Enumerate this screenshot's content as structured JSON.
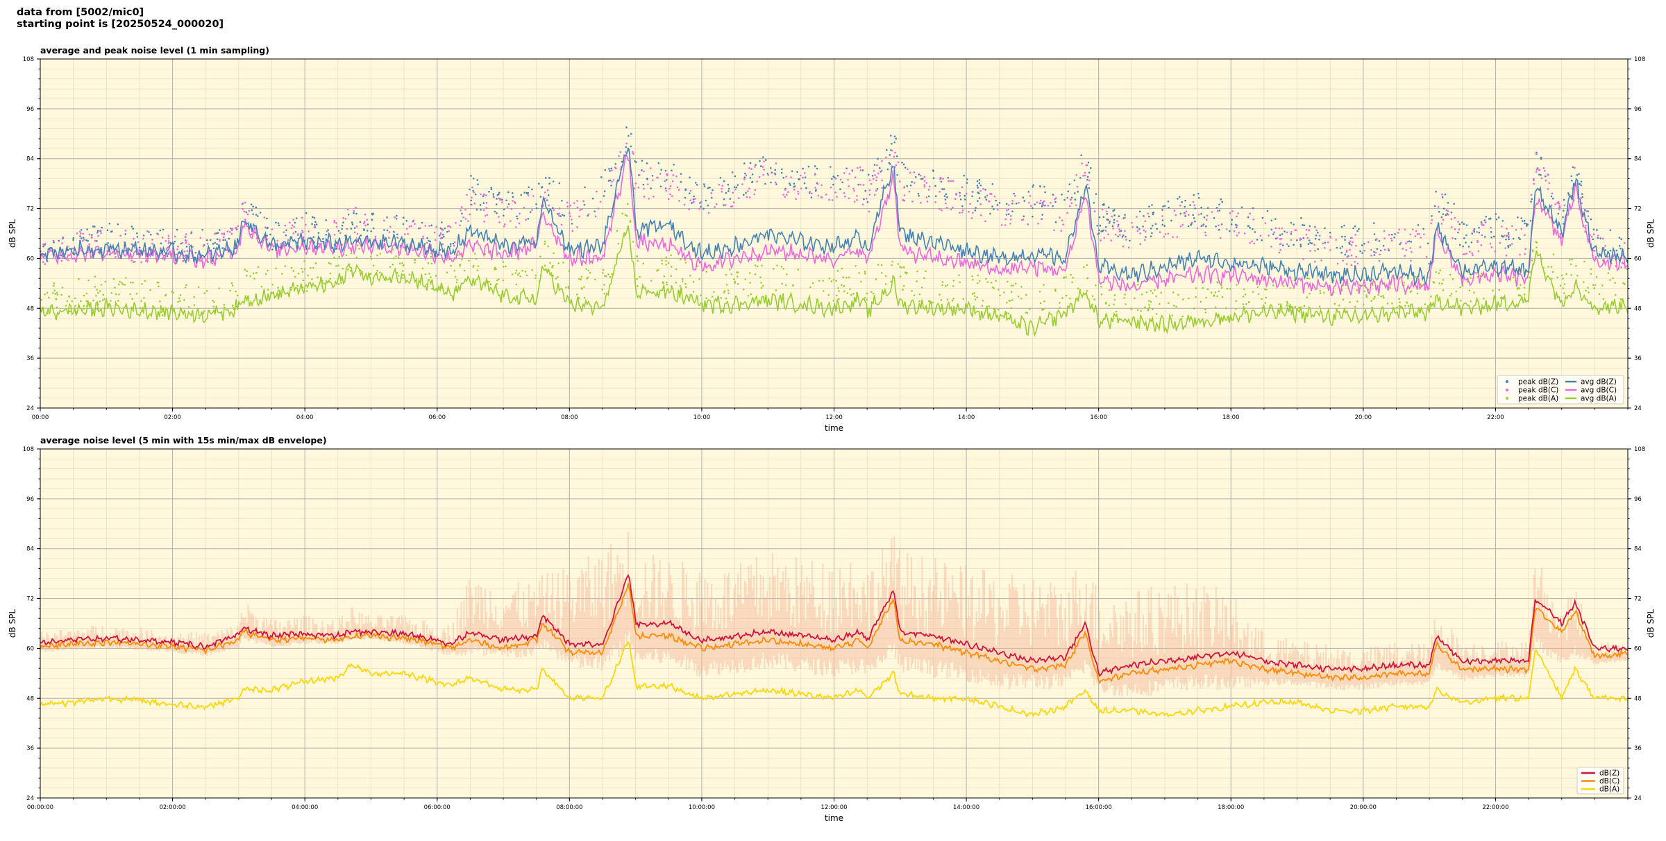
{
  "header": {
    "line1": "data from [5002/mic0]",
    "line2": "starting point is [20250524_000020]"
  },
  "colors": {
    "background": "#fff8dc",
    "grid_major": "#b0b0b0",
    "grid_minor": "#e4dcc0",
    "dbz": "#4682b4",
    "dbc": "#ee66dd",
    "dba": "#9acd32",
    "p2_z": "#d2143c",
    "p2_c": "#ff8c00",
    "p2_a": "#ffd700",
    "envelope": "#f4b69a"
  },
  "chart_data": [
    {
      "type": "line",
      "title": "average and peak noise level (1 min sampling)",
      "xlabel": "time",
      "ylabel": "dB SPL",
      "xlim_hours": [
        0,
        24
      ],
      "ylim": [
        24,
        108
      ],
      "yticks": [
        24,
        36,
        48,
        60,
        72,
        84,
        96,
        108
      ],
      "xtick_hours": [
        0,
        2,
        4,
        6,
        8,
        10,
        12,
        14,
        16,
        18,
        20,
        22
      ],
      "xtick_labels": [
        "00:00",
        "02:00",
        "04:00",
        "06:00",
        "08:00",
        "10:00",
        "12:00",
        "14:00",
        "16:00",
        "18:00",
        "20:00",
        "22:00"
      ],
      "grid": true,
      "legend_position": "bottom-right",
      "x_hours": [
        0.0,
        0.5,
        1.0,
        1.5,
        2.0,
        2.5,
        3.0,
        3.05,
        3.5,
        4.0,
        4.5,
        4.7,
        5.0,
        5.5,
        6.0,
        6.2,
        6.5,
        7.0,
        7.5,
        7.6,
        8.0,
        8.5,
        8.9,
        9.0,
        9.5,
        10.0,
        10.5,
        11.0,
        11.5,
        12.0,
        12.4,
        12.5,
        12.9,
        13.0,
        13.5,
        14.0,
        14.5,
        15.0,
        15.5,
        15.8,
        16.0,
        16.5,
        17.0,
        17.5,
        18.0,
        18.5,
        19.0,
        19.5,
        20.0,
        20.5,
        21.0,
        21.1,
        21.5,
        22.0,
        22.5,
        22.6,
        23.0,
        23.2,
        23.5,
        24.0
      ],
      "legend": [
        "peak dB(Z)",
        "peak dB(C)",
        "peak dB(A)",
        "avg dB(Z)",
        "avg dB(C)",
        "avg dB(A)"
      ],
      "series": [
        {
          "name": "avg dB(Z)",
          "values": [
            61.5,
            62,
            62.5,
            62,
            61.5,
            60.5,
            63,
            70,
            63,
            64,
            63.5,
            64,
            64,
            63.5,
            62,
            61,
            67,
            63,
            64,
            74,
            62,
            63,
            88,
            67,
            68,
            61,
            63,
            66,
            64,
            63,
            65,
            62,
            83,
            66,
            64,
            62,
            60,
            61,
            60,
            78,
            58,
            56,
            58,
            60,
            59,
            58,
            57,
            56,
            56,
            57,
            55,
            68,
            57,
            58,
            57,
            77,
            66,
            79,
            61,
            60.5
          ]
        },
        {
          "name": "avg dB(C)",
          "values": [
            60.5,
            61,
            61.5,
            61,
            60.5,
            59.5,
            62,
            69,
            62,
            63,
            62.5,
            63,
            63,
            62.5,
            61,
            60,
            63,
            61,
            63,
            71,
            60,
            60,
            86,
            64,
            63,
            58,
            60,
            62,
            61,
            60,
            62,
            59,
            80,
            62,
            60,
            59,
            57,
            58,
            57,
            76,
            55,
            53,
            55,
            56,
            56,
            55,
            54,
            53,
            53,
            54,
            53,
            66,
            55,
            56,
            55,
            75,
            64,
            77,
            59,
            59
          ]
        },
        {
          "name": "avg dB(A)",
          "values": [
            47,
            47.5,
            48,
            47.5,
            47,
            46.5,
            48,
            50,
            51,
            53,
            54,
            58,
            55,
            56,
            53,
            51,
            55,
            51,
            50,
            58,
            49,
            48,
            68,
            52,
            52,
            49,
            49,
            50,
            49,
            48,
            50,
            47,
            54,
            49,
            48,
            48,
            46,
            43,
            47,
            52,
            45,
            45,
            44,
            45,
            46,
            47,
            47,
            46,
            46,
            47,
            47,
            50,
            48,
            49,
            50,
            62,
            49,
            54,
            48,
            49
          ]
        },
        {
          "name": "peak dB(Z)",
          "values": [
            63,
            64,
            64.5,
            64,
            63.5,
            63,
            65,
            72,
            66,
            67,
            66,
            70,
            67,
            67,
            65,
            65,
            76,
            72,
            74,
            78,
            72,
            76,
            90,
            80,
            80,
            74,
            78,
            82,
            79,
            78,
            80,
            76,
            88,
            80,
            78,
            76,
            74,
            74,
            72,
            84,
            70,
            68,
            70,
            72,
            70,
            68,
            66,
            64,
            64,
            66,
            64,
            76,
            66,
            67,
            66,
            86,
            70,
            80,
            64,
            62
          ]
        },
        {
          "name": "peak dB(C)",
          "values": [
            62,
            63,
            63.5,
            63,
            62.5,
            62,
            64,
            71,
            65,
            66,
            65,
            69,
            66,
            66,
            64,
            64,
            74,
            70,
            72,
            76,
            70,
            74,
            88,
            78,
            78,
            72,
            76,
            80,
            77,
            76,
            78,
            74,
            86,
            78,
            76,
            74,
            72,
            72,
            70,
            82,
            68,
            66,
            68,
            70,
            68,
            66,
            64,
            62,
            62,
            64,
            62,
            74,
            64,
            65,
            64,
            84,
            68,
            78,
            63,
            61
          ]
        },
        {
          "name": "peak dB(A)",
          "values": [
            50,
            51,
            52,
            51,
            50,
            49.5,
            51,
            54,
            54,
            56,
            57,
            61,
            58,
            59,
            56,
            55,
            60,
            56,
            55,
            62,
            54,
            53,
            72,
            57,
            57,
            54,
            54,
            55,
            54,
            53,
            55,
            52,
            58,
            54,
            53,
            53,
            51,
            49,
            52,
            56,
            50,
            50,
            49,
            50,
            51,
            52,
            52,
            51,
            51,
            52,
            52,
            54,
            53,
            54,
            55,
            64,
            54,
            58,
            53,
            54
          ]
        }
      ]
    },
    {
      "type": "line",
      "title": "average noise level (5 min with 15s min/max dB envelope)",
      "xlabel": "time",
      "ylabel": "dB SPL",
      "xlim_hours": [
        0,
        24
      ],
      "ylim": [
        24,
        108
      ],
      "yticks": [
        24,
        36,
        48,
        60,
        72,
        84,
        96,
        108
      ],
      "xtick_hours": [
        0,
        2,
        4,
        6,
        8,
        10,
        12,
        14,
        16,
        18,
        20,
        22
      ],
      "xtick_labels": [
        "00:00:00",
        "02:00:00",
        "04:00:00",
        "06:00:00",
        "08:00:00",
        "10:00:00",
        "12:00:00",
        "14:00:00",
        "16:00:00",
        "18:00:00",
        "20:00:00",
        "22:00:00"
      ],
      "grid": true,
      "legend_position": "bottom-right",
      "x_hours": [
        0.0,
        0.5,
        1.0,
        1.5,
        2.0,
        2.5,
        3.0,
        3.05,
        3.5,
        4.0,
        4.5,
        4.7,
        5.0,
        5.5,
        6.0,
        6.2,
        6.5,
        7.0,
        7.5,
        7.6,
        8.0,
        8.5,
        8.9,
        9.0,
        9.5,
        10.0,
        10.5,
        11.0,
        11.5,
        12.0,
        12.4,
        12.5,
        12.9,
        13.0,
        13.5,
        14.0,
        14.5,
        15.0,
        15.5,
        15.8,
        16.0,
        16.5,
        17.0,
        17.5,
        18.0,
        18.5,
        19.0,
        19.5,
        20.0,
        20.5,
        21.0,
        21.1,
        21.5,
        22.0,
        22.5,
        22.6,
        23.0,
        23.2,
        23.5,
        24.0
      ],
      "legend": [
        "dB(Z)",
        "dB(C)",
        "dB(A)"
      ],
      "envelope": {
        "upper": [
          64,
          65,
          66,
          65,
          64,
          64,
          66,
          72,
          67,
          68,
          67,
          70,
          68,
          68,
          66,
          66,
          78,
          76,
          76,
          78,
          80,
          84,
          90,
          84,
          82,
          80,
          80,
          84,
          82,
          82,
          84,
          80,
          88,
          84,
          82,
          80,
          78,
          78,
          76,
          84,
          74,
          74,
          76,
          76,
          74,
          64,
          62,
          61,
          60,
          62,
          61,
          70,
          62,
          62,
          62,
          84,
          68,
          76,
          62,
          61
        ],
        "lower": [
          59,
          59.5,
          60,
          59.5,
          59,
          58,
          60,
          62,
          60,
          61,
          61,
          62,
          62,
          61,
          59,
          58,
          58,
          57,
          58,
          60,
          55,
          54,
          60,
          56,
          56,
          53,
          54,
          55,
          54,
          53,
          54,
          52,
          58,
          54,
          53,
          52,
          50,
          50,
          50,
          54,
          49,
          48,
          49,
          50,
          50,
          51,
          51,
          50,
          50,
          51,
          51,
          55,
          52,
          53,
          53,
          60,
          56,
          58,
          56,
          57
        ]
      },
      "series": [
        {
          "name": "dB(Z)",
          "values": [
            61.5,
            62,
            62.5,
            62,
            61.5,
            60.5,
            63,
            65,
            63,
            63.5,
            63,
            64,
            64,
            63.5,
            62,
            61,
            64,
            62,
            63,
            68,
            61,
            61,
            78,
            66,
            66,
            62,
            63,
            64,
            63,
            62,
            64,
            62,
            74,
            64,
            63,
            61,
            59,
            57,
            58,
            66,
            54,
            56,
            57,
            58,
            59,
            57,
            56,
            55,
            55,
            56,
            56,
            63,
            57,
            57,
            57,
            72,
            66,
            71,
            60,
            60
          ]
        },
        {
          "name": "dB(C)",
          "values": [
            60.5,
            61,
            61.5,
            61,
            60.5,
            59.5,
            62,
            64,
            62,
            62.5,
            62,
            63,
            63,
            62.5,
            61,
            60,
            62,
            60,
            62,
            66,
            59,
            59,
            76,
            63,
            63,
            60,
            61,
            62,
            61,
            60,
            62,
            60,
            72,
            62,
            61,
            59,
            57,
            55,
            56,
            64,
            52,
            54,
            55,
            56,
            57,
            55,
            54,
            53,
            53,
            54,
            54,
            61,
            55,
            55,
            55,
            70,
            64,
            69,
            58,
            59
          ]
        },
        {
          "name": "dB(A)",
          "values": [
            46.5,
            47,
            48,
            47.5,
            46.5,
            46,
            48,
            50,
            50,
            52,
            53,
            56,
            54,
            54,
            52,
            51,
            53,
            50,
            50,
            55,
            48,
            48,
            62,
            51,
            51,
            48,
            49,
            50,
            49,
            48,
            50,
            48,
            54,
            49,
            48,
            48,
            46,
            44,
            46,
            50,
            45,
            45,
            44,
            45,
            46,
            47,
            47,
            45,
            45,
            46,
            46,
            50,
            47,
            48,
            48,
            60,
            48,
            55,
            48,
            48
          ]
        }
      ]
    }
  ]
}
